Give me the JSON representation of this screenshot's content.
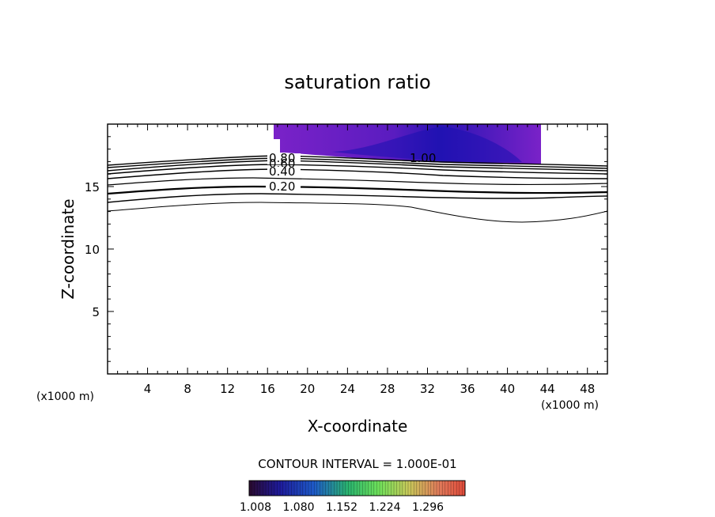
{
  "chart_data": {
    "type": "contour",
    "title": "saturation ratio",
    "xlabel": "X-coordinate",
    "ylabel": "Z-coordinate",
    "x_unit": "(x1000 m)",
    "y_unit": "(x1000 m)",
    "xlim": [
      0,
      50
    ],
    "ylim": [
      0,
      20
    ],
    "x_ticks": [
      "4",
      "8",
      "12",
      "16",
      "20",
      "24",
      "28",
      "32",
      "36",
      "40",
      "44",
      "48"
    ],
    "y_ticks": [
      "5",
      "10",
      "15"
    ],
    "contour_interval_text": "CONTOUR INTERVAL = 1.000E-01",
    "contour_labels": [
      "0.80",
      "0.60",
      "0.40",
      "0.20",
      "1.00"
    ],
    "colorbar": {
      "tick_labels": [
        "1.008",
        "1.080",
        "1.152",
        "1.224",
        "1.296"
      ]
    },
    "supersaturated_region": {
      "x_range": [
        17,
        43.5
      ],
      "z_top": 20
    },
    "colors": {
      "fill_low": "#7a1ec2",
      "fill_high": "#1f0fa8",
      "colorbar_stops": [
        "#2a0a2e",
        "#1e1a9a",
        "#1e5ac8",
        "#2ab46e",
        "#6ee05a",
        "#c8c85a",
        "#e07a5a",
        "#e04a3a"
      ]
    }
  }
}
